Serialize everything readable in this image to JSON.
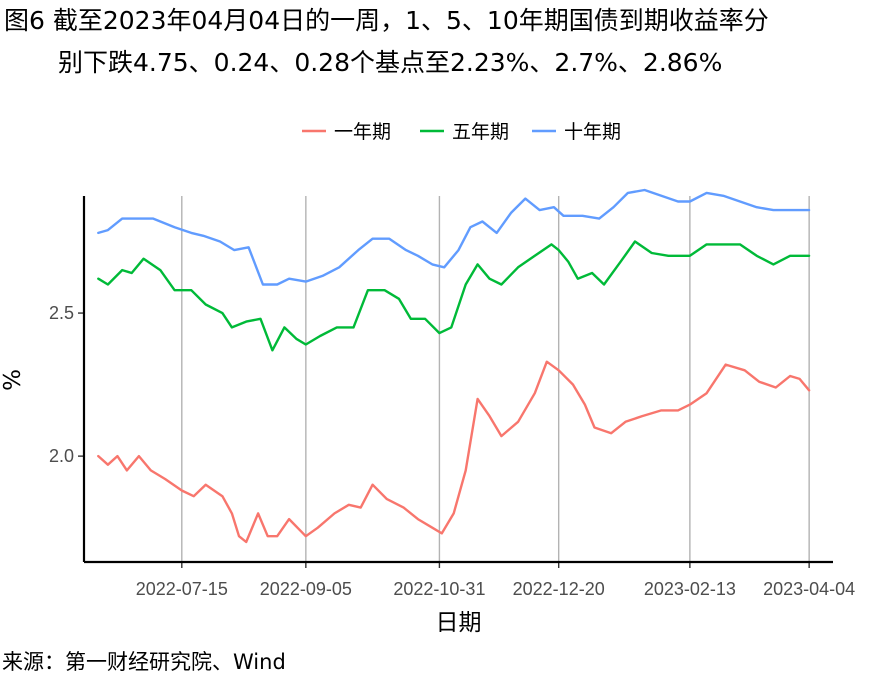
{
  "title": {
    "line1": "图6  截至2023年04月04日的一周，1、5、10年期国债到期收益率分",
    "line2": "别下跌4.75、0.24、0.28个基点至2.23%、2.7%、2.86%"
  },
  "source": "来源：第一财经研究院、Wind",
  "chart_data": {
    "type": "line",
    "xlabel": "日期",
    "ylabel": "%",
    "x_ticks": [
      "2022-07-15",
      "2022-09-05",
      "2022-10-31",
      "2022-12-20",
      "2023-02-13",
      "2023-04-04"
    ],
    "y_ticks": [
      2.0,
      2.5
    ],
    "xlim": [
      "2022-06-04",
      "2023-04-14"
    ],
    "ylim": [
      1.63,
      3.0
    ],
    "grid": "vertical major lines at x ticks",
    "legend_position": "top",
    "series": [
      {
        "name": "一年期",
        "color": "#F8766D",
        "points": [
          [
            "2022-06-10",
            2.0
          ],
          [
            "2022-06-14",
            1.97
          ],
          [
            "2022-06-18",
            2.0
          ],
          [
            "2022-06-22",
            1.95
          ],
          [
            "2022-06-27",
            2.0
          ],
          [
            "2022-07-02",
            1.95
          ],
          [
            "2022-07-08",
            1.92
          ],
          [
            "2022-07-15",
            1.88
          ],
          [
            "2022-07-20",
            1.86
          ],
          [
            "2022-07-25",
            1.9
          ],
          [
            "2022-08-01",
            1.86
          ],
          [
            "2022-08-05",
            1.8
          ],
          [
            "2022-08-08",
            1.72
          ],
          [
            "2022-08-11",
            1.7
          ],
          [
            "2022-08-16",
            1.8
          ],
          [
            "2022-08-20",
            1.72
          ],
          [
            "2022-08-24",
            1.72
          ],
          [
            "2022-08-29",
            1.78
          ],
          [
            "2022-09-05",
            1.72
          ],
          [
            "2022-09-10",
            1.75
          ],
          [
            "2022-09-17",
            1.8
          ],
          [
            "2022-09-23",
            1.83
          ],
          [
            "2022-09-28",
            1.82
          ],
          [
            "2022-10-03",
            1.9
          ],
          [
            "2022-10-09",
            1.85
          ],
          [
            "2022-10-16",
            1.82
          ],
          [
            "2022-10-22",
            1.78
          ],
          [
            "2022-10-28",
            1.75
          ],
          [
            "2022-11-01",
            1.73
          ],
          [
            "2022-11-06",
            1.8
          ],
          [
            "2022-11-11",
            1.95
          ],
          [
            "2022-11-16",
            2.2
          ],
          [
            "2022-11-21",
            2.14
          ],
          [
            "2022-11-26",
            2.07
          ],
          [
            "2022-12-03",
            2.12
          ],
          [
            "2022-12-10",
            2.22
          ],
          [
            "2022-12-15",
            2.33
          ],
          [
            "2022-12-20",
            2.3
          ],
          [
            "2022-12-26",
            2.25
          ],
          [
            "2022-12-31",
            2.18
          ],
          [
            "2023-01-04",
            2.1
          ],
          [
            "2023-01-11",
            2.08
          ],
          [
            "2023-01-17",
            2.12
          ],
          [
            "2023-01-24",
            2.14
          ],
          [
            "2023-02-01",
            2.16
          ],
          [
            "2023-02-08",
            2.16
          ],
          [
            "2023-02-13",
            2.18
          ],
          [
            "2023-02-20",
            2.22
          ],
          [
            "2023-02-28",
            2.32
          ],
          [
            "2023-03-08",
            2.3
          ],
          [
            "2023-03-14",
            2.26
          ],
          [
            "2023-03-21",
            2.24
          ],
          [
            "2023-03-27",
            2.28
          ],
          [
            "2023-03-31",
            2.27
          ],
          [
            "2023-04-04",
            2.23
          ]
        ]
      },
      {
        "name": "五年期",
        "color": "#00BA38",
        "points": [
          [
            "2022-06-10",
            2.62
          ],
          [
            "2022-06-14",
            2.6
          ],
          [
            "2022-06-20",
            2.65
          ],
          [
            "2022-06-24",
            2.64
          ],
          [
            "2022-06-29",
            2.69
          ],
          [
            "2022-07-06",
            2.65
          ],
          [
            "2022-07-12",
            2.58
          ],
          [
            "2022-07-19",
            2.58
          ],
          [
            "2022-07-25",
            2.53
          ],
          [
            "2022-08-01",
            2.5
          ],
          [
            "2022-08-05",
            2.45
          ],
          [
            "2022-08-11",
            2.47
          ],
          [
            "2022-08-17",
            2.48
          ],
          [
            "2022-08-22",
            2.37
          ],
          [
            "2022-08-27",
            2.45
          ],
          [
            "2022-09-01",
            2.41
          ],
          [
            "2022-09-05",
            2.39
          ],
          [
            "2022-09-11",
            2.42
          ],
          [
            "2022-09-18",
            2.45
          ],
          [
            "2022-09-25",
            2.45
          ],
          [
            "2022-10-01",
            2.58
          ],
          [
            "2022-10-08",
            2.58
          ],
          [
            "2022-10-14",
            2.55
          ],
          [
            "2022-10-19",
            2.48
          ],
          [
            "2022-10-25",
            2.48
          ],
          [
            "2022-10-31",
            2.43
          ],
          [
            "2022-11-05",
            2.45
          ],
          [
            "2022-11-11",
            2.6
          ],
          [
            "2022-11-16",
            2.67
          ],
          [
            "2022-11-21",
            2.62
          ],
          [
            "2022-11-26",
            2.6
          ],
          [
            "2022-12-03",
            2.66
          ],
          [
            "2022-12-10",
            2.7
          ],
          [
            "2022-12-17",
            2.74
          ],
          [
            "2022-12-20",
            2.72
          ],
          [
            "2022-12-24",
            2.68
          ],
          [
            "2022-12-28",
            2.62
          ],
          [
            "2023-01-03",
            2.64
          ],
          [
            "2023-01-08",
            2.6
          ],
          [
            "2023-01-15",
            2.68
          ],
          [
            "2023-01-21",
            2.75
          ],
          [
            "2023-01-28",
            2.71
          ],
          [
            "2023-02-04",
            2.7
          ],
          [
            "2023-02-13",
            2.7
          ],
          [
            "2023-02-20",
            2.74
          ],
          [
            "2023-02-27",
            2.74
          ],
          [
            "2023-03-06",
            2.74
          ],
          [
            "2023-03-13",
            2.7
          ],
          [
            "2023-03-20",
            2.67
          ],
          [
            "2023-03-27",
            2.7
          ],
          [
            "2023-04-04",
            2.7
          ]
        ]
      },
      {
        "name": "十年期",
        "color": "#619CFF",
        "points": [
          [
            "2022-06-10",
            2.78
          ],
          [
            "2022-06-14",
            2.79
          ],
          [
            "2022-06-20",
            2.83
          ],
          [
            "2022-06-27",
            2.83
          ],
          [
            "2022-07-03",
            2.83
          ],
          [
            "2022-07-12",
            2.8
          ],
          [
            "2022-07-19",
            2.78
          ],
          [
            "2022-07-24",
            2.77
          ],
          [
            "2022-07-31",
            2.75
          ],
          [
            "2022-08-06",
            2.72
          ],
          [
            "2022-08-12",
            2.73
          ],
          [
            "2022-08-18",
            2.6
          ],
          [
            "2022-08-24",
            2.6
          ],
          [
            "2022-08-29",
            2.62
          ],
          [
            "2022-09-05",
            2.61
          ],
          [
            "2022-09-12",
            2.63
          ],
          [
            "2022-09-19",
            2.66
          ],
          [
            "2022-09-27",
            2.72
          ],
          [
            "2022-10-03",
            2.76
          ],
          [
            "2022-10-10",
            2.76
          ],
          [
            "2022-10-17",
            2.72
          ],
          [
            "2022-10-22",
            2.7
          ],
          [
            "2022-10-28",
            2.67
          ],
          [
            "2022-11-02",
            2.66
          ],
          [
            "2022-11-08",
            2.72
          ],
          [
            "2022-11-13",
            2.8
          ],
          [
            "2022-11-18",
            2.82
          ],
          [
            "2022-11-24",
            2.78
          ],
          [
            "2022-11-30",
            2.85
          ],
          [
            "2022-12-06",
            2.9
          ],
          [
            "2022-12-12",
            2.86
          ],
          [
            "2022-12-18",
            2.87
          ],
          [
            "2022-12-22",
            2.84
          ],
          [
            "2022-12-30",
            2.84
          ],
          [
            "2023-01-06",
            2.83
          ],
          [
            "2023-01-12",
            2.87
          ],
          [
            "2023-01-18",
            2.92
          ],
          [
            "2023-01-25",
            2.93
          ],
          [
            "2023-02-01",
            2.91
          ],
          [
            "2023-02-08",
            2.89
          ],
          [
            "2023-02-13",
            2.89
          ],
          [
            "2023-02-20",
            2.92
          ],
          [
            "2023-02-27",
            2.91
          ],
          [
            "2023-03-06",
            2.89
          ],
          [
            "2023-03-13",
            2.87
          ],
          [
            "2023-03-20",
            2.86
          ],
          [
            "2023-03-27",
            2.86
          ],
          [
            "2023-04-04",
            2.86
          ]
        ]
      }
    ]
  }
}
